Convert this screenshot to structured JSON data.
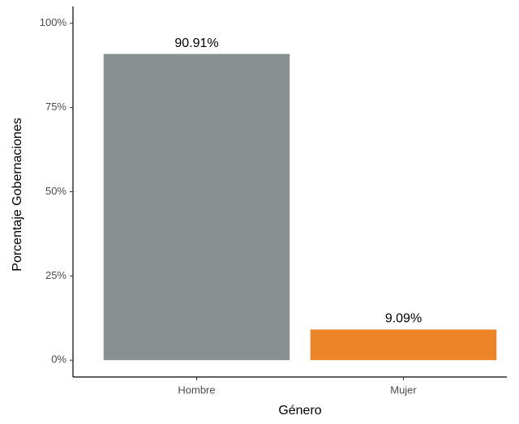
{
  "chart_data": {
    "type": "bar",
    "x_label": "Género",
    "y_label": "Porcentaje Gobernaciones",
    "categories": [
      "Hombre",
      "Mujer"
    ],
    "values": [
      90.91,
      9.09
    ],
    "value_labels": [
      "90.91%",
      "9.09%"
    ],
    "colors": [
      "#8a8f92",
      "#ee8428"
    ],
    "ylim": [
      -5,
      105
    ],
    "yticks": [
      {
        "value": 0,
        "label": "0%"
      },
      {
        "value": 25,
        "label": "25%"
      },
      {
        "value": 50,
        "label": "50%"
      },
      {
        "value": 75,
        "label": "75%"
      },
      {
        "value": 100,
        "label": "100%"
      }
    ],
    "grid": false
  }
}
